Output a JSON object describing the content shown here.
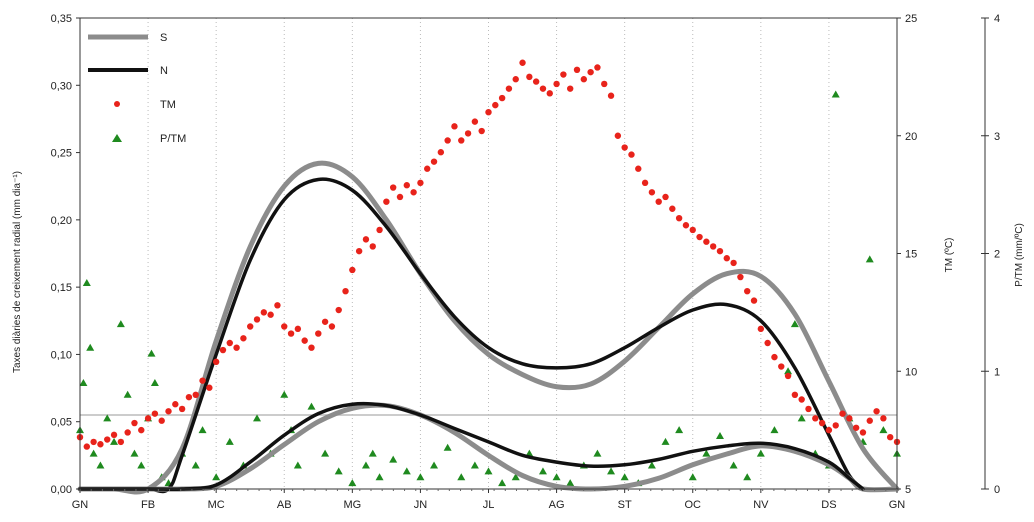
{
  "chart_data": {
    "type": "line",
    "months": [
      "GN",
      "FB",
      "MC",
      "AB",
      "MG",
      "JN",
      "JL",
      "AG",
      "ST",
      "OC",
      "NV",
      "DS",
      "GN"
    ],
    "axes": {
      "left": {
        "label": "Taxes diàries de creixement radial (mm dia⁻¹)",
        "ylim": [
          0,
          0.35
        ],
        "ticks": [
          "0,00",
          "0,05",
          "0,10",
          "0,15",
          "0,20",
          "0,25",
          "0,30",
          "0,35"
        ]
      },
      "right1": {
        "label": "TM (ºC)",
        "ylim": [
          5,
          25
        ],
        "ticks": [
          "5",
          "10",
          "15",
          "20",
          "25"
        ]
      },
      "right2": {
        "label": "P/TM (mm/ºC)",
        "ylim": [
          0,
          4
        ],
        "ticks": [
          "0",
          "1",
          "2",
          "3",
          "4"
        ]
      }
    },
    "reference_line": {
      "axis": "left",
      "value": 0.055
    },
    "legend": [
      "S",
      "N",
      "TM",
      "P/TM"
    ],
    "colors": {
      "S": "#8c8c8c",
      "N": "#111111",
      "TM": "#e8231b",
      "P/TM": "#1f8a1f"
    },
    "series": [
      {
        "name": "S",
        "axis": "left",
        "style": "thick-line",
        "color": "#8c8c8c",
        "x": [
          1,
          1.5,
          2,
          2.5,
          3,
          3.5,
          4,
          4.5,
          5,
          5.5,
          6,
          6.5,
          7,
          7.5,
          8,
          8.5,
          9,
          9.5,
          10,
          10.5,
          11,
          11.5,
          12,
          12.5,
          13
        ],
        "y": [
          0,
          0,
          0,
          0.03,
          0.11,
          0.18,
          0.225,
          0.242,
          0.232,
          0.2,
          0.16,
          0.125,
          0.1,
          0.085,
          0.076,
          0.078,
          0.095,
          0.12,
          0.145,
          0.16,
          0.158,
          0.13,
          0.08,
          0.03,
          0
        ]
      },
      {
        "name": "N",
        "axis": "left",
        "style": "thick-line",
        "color": "#111111",
        "x": [
          1,
          1.5,
          2,
          2.3,
          2.5,
          3,
          3.5,
          4,
          4.5,
          5,
          5.5,
          6,
          6.5,
          7,
          7.5,
          8,
          8.5,
          9,
          9.5,
          10,
          10.5,
          11,
          11.5,
          12,
          12.3,
          12.5
        ],
        "y": [
          0,
          0,
          0,
          0,
          0.025,
          0.1,
          0.17,
          0.215,
          0.23,
          0.222,
          0.195,
          0.16,
          0.128,
          0.105,
          0.093,
          0.09,
          0.093,
          0.105,
          0.12,
          0.133,
          0.137,
          0.125,
          0.09,
          0.04,
          0.01,
          0
        ]
      },
      {
        "name": "S-lower",
        "axis": "left",
        "style": "thick-line",
        "color": "#8c8c8c",
        "x": [
          1,
          2,
          2.5,
          3,
          3.5,
          4,
          4.5,
          5,
          5.5,
          6,
          6.5,
          7,
          7.5,
          8,
          8.5,
          9,
          9.5,
          10,
          10.5,
          11,
          11.5,
          12,
          12.3,
          12.5,
          13
        ],
        "y": [
          0,
          0,
          0,
          0.002,
          0.015,
          0.033,
          0.05,
          0.06,
          0.062,
          0.055,
          0.042,
          0.025,
          0.01,
          0.002,
          0,
          0.002,
          0.008,
          0.018,
          0.026,
          0.032,
          0.028,
          0.018,
          0.008,
          0,
          0
        ]
      },
      {
        "name": "N-lower",
        "axis": "left",
        "style": "thick-line",
        "color": "#111111",
        "x": [
          1,
          2,
          2.5,
          3,
          3.5,
          4,
          4.5,
          5,
          5.5,
          6,
          6.5,
          7,
          7.5,
          8,
          8.5,
          9,
          9.5,
          10,
          10.5,
          11,
          11.5,
          12,
          12.3,
          12.5
        ],
        "y": [
          0,
          0,
          0,
          0.003,
          0.02,
          0.04,
          0.056,
          0.063,
          0.062,
          0.055,
          0.045,
          0.035,
          0.025,
          0.02,
          0.017,
          0.018,
          0.022,
          0.028,
          0.032,
          0.034,
          0.03,
          0.02,
          0.008,
          0
        ]
      },
      {
        "name": "TM",
        "axis": "right1",
        "style": "scatter-dot",
        "color": "#e8231b",
        "x": [
          1.0,
          1.1,
          1.2,
          1.3,
          1.4,
          1.5,
          1.6,
          1.7,
          1.8,
          1.9,
          2.0,
          2.1,
          2.2,
          2.3,
          2.4,
          2.5,
          2.6,
          2.7,
          2.8,
          2.9,
          3.0,
          3.1,
          3.2,
          3.3,
          3.4,
          3.5,
          3.6,
          3.7,
          3.8,
          3.9,
          4.0,
          4.1,
          4.2,
          4.3,
          4.4,
          4.5,
          4.6,
          4.7,
          4.8,
          4.9,
          5.0,
          5.1,
          5.2,
          5.3,
          5.4,
          5.5,
          5.6,
          5.7,
          5.8,
          5.9,
          6.0,
          6.1,
          6.2,
          6.3,
          6.4,
          6.5,
          6.6,
          6.7,
          6.8,
          6.9,
          7.0,
          7.1,
          7.2,
          7.3,
          7.4,
          7.5,
          7.6,
          7.7,
          7.8,
          7.9,
          8.0,
          8.1,
          8.2,
          8.3,
          8.4,
          8.5,
          8.6,
          8.7,
          8.8,
          8.9,
          9.0,
          9.1,
          9.2,
          9.3,
          9.4,
          9.5,
          9.6,
          9.7,
          9.8,
          9.9,
          10.0,
          10.1,
          10.2,
          10.3,
          10.4,
          10.5,
          10.6,
          10.7,
          10.8,
          10.9,
          11.0,
          11.1,
          11.2,
          11.3,
          11.4,
          11.5,
          11.6,
          11.7,
          11.8,
          11.9,
          12.0,
          12.1,
          12.2,
          12.3,
          12.4,
          12.5,
          12.6,
          12.7,
          12.8,
          12.9,
          13.0
        ],
        "y": [
          7.2,
          6.8,
          7.0,
          6.9,
          7.1,
          7.3,
          7.0,
          7.4,
          7.8,
          7.5,
          8.0,
          8.2,
          7.9,
          8.3,
          8.6,
          8.4,
          8.9,
          9.0,
          9.6,
          9.3,
          10.4,
          10.9,
          11.2,
          11.0,
          11.4,
          11.9,
          12.2,
          12.5,
          12.4,
          12.8,
          11.9,
          11.6,
          11.8,
          11.3,
          11.0,
          11.6,
          12.1,
          11.9,
          12.6,
          13.4,
          14.3,
          15.1,
          15.6,
          15.3,
          16.0,
          17.2,
          17.8,
          17.4,
          17.9,
          17.6,
          18.0,
          18.6,
          18.9,
          19.3,
          19.8,
          20.4,
          19.8,
          20.1,
          20.6,
          20.2,
          21.0,
          21.3,
          21.6,
          22.0,
          22.4,
          23.1,
          22.5,
          22.3,
          22.0,
          21.8,
          22.2,
          22.6,
          22.0,
          22.8,
          22.4,
          22.7,
          22.9,
          22.2,
          21.7,
          20.0,
          19.5,
          19.2,
          18.6,
          18.0,
          17.6,
          17.2,
          17.4,
          16.9,
          16.5,
          16.2,
          16.0,
          15.7,
          15.5,
          15.3,
          15.1,
          14.8,
          14.6,
          14.0,
          13.4,
          13.0,
          11.8,
          11.2,
          10.6,
          10.2,
          9.8,
          9.0,
          8.8,
          8.4,
          8.0,
          7.8,
          7.5,
          7.7,
          8.2,
          8.0,
          7.6,
          7.4,
          7.9,
          8.3,
          8.0,
          7.2,
          7.0
        ]
      },
      {
        "name": "P/TM",
        "axis": "right2",
        "style": "scatter-triangle",
        "color": "#1f8a1f",
        "x": [
          1.0,
          1.05,
          1.1,
          1.15,
          1.2,
          1.3,
          1.4,
          1.5,
          1.6,
          1.7,
          1.8,
          1.9,
          2.0,
          2.05,
          2.1,
          2.2,
          2.3,
          2.5,
          2.7,
          2.8,
          3.0,
          3.2,
          3.4,
          3.6,
          3.8,
          4.0,
          4.1,
          4.2,
          4.4,
          4.6,
          4.8,
          5.0,
          5.2,
          5.3,
          5.4,
          5.6,
          5.8,
          6.0,
          6.2,
          6.4,
          6.6,
          6.8,
          7.0,
          7.2,
          7.4,
          7.6,
          7.8,
          8.0,
          8.2,
          8.4,
          8.6,
          8.8,
          9.0,
          9.2,
          9.4,
          9.6,
          9.8,
          10.0,
          10.2,
          10.4,
          10.6,
          10.8,
          11.0,
          11.2,
          11.4,
          11.5,
          11.6,
          11.8,
          12.0,
          12.1,
          12.3,
          12.5,
          12.6,
          12.8,
          13.0
        ],
        "y": [
          0.5,
          0.9,
          1.75,
          1.2,
          0.3,
          0.2,
          0.6,
          0.4,
          1.4,
          0.8,
          0.3,
          0.2,
          0.6,
          1.15,
          0.9,
          0.1,
          0.05,
          0.3,
          0.2,
          0.5,
          0.1,
          0.4,
          0.2,
          0.6,
          0.3,
          0.8,
          0.5,
          0.2,
          0.7,
          0.3,
          0.15,
          0.05,
          0.2,
          0.3,
          0.1,
          0.25,
          0.15,
          0.1,
          0.2,
          0.35,
          0.1,
          0.2,
          0.15,
          0.05,
          0.1,
          0.3,
          0.15,
          0.1,
          0.05,
          0.2,
          0.3,
          0.15,
          0.1,
          0.05,
          0.2,
          0.4,
          0.5,
          0.1,
          0.3,
          0.45,
          0.2,
          0.1,
          0.3,
          0.5,
          1.0,
          1.4,
          0.6,
          0.3,
          0.2,
          3.35,
          0.6,
          0.4,
          1.95,
          0.5,
          0.3
        ]
      }
    ]
  }
}
